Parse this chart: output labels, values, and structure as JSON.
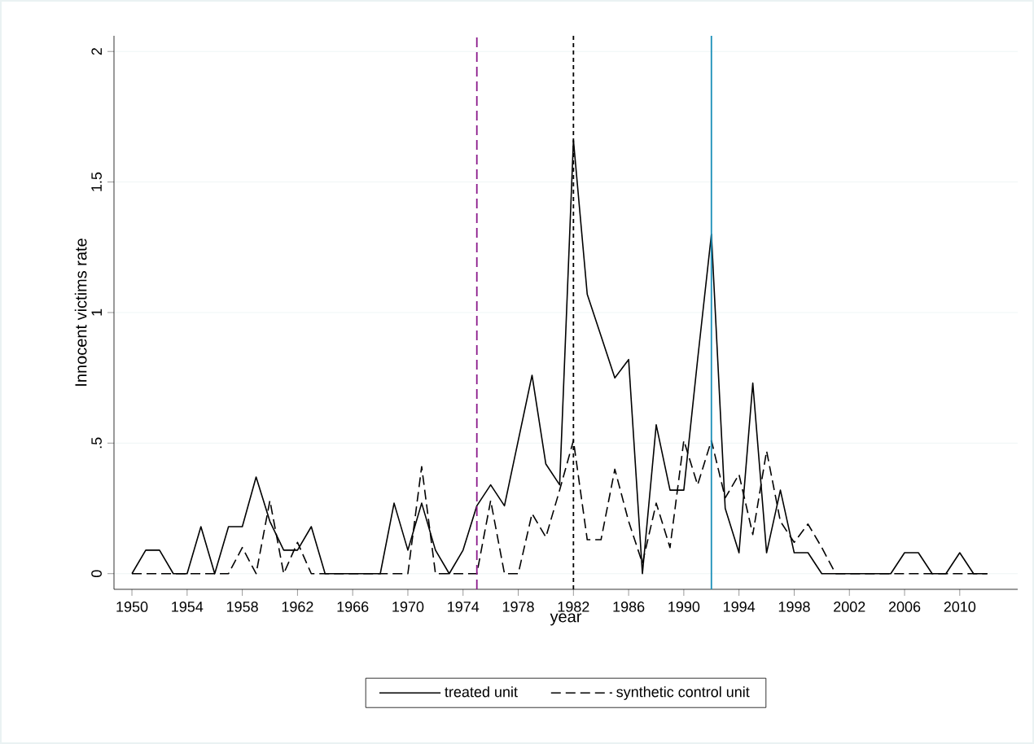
{
  "chart_data": {
    "type": "line",
    "xlabel": "year",
    "ylabel": "Innocent victims rate",
    "x": [
      1950,
      1951,
      1952,
      1953,
      1954,
      1955,
      1956,
      1957,
      1958,
      1959,
      1960,
      1961,
      1962,
      1963,
      1964,
      1965,
      1966,
      1967,
      1968,
      1969,
      1970,
      1971,
      1972,
      1973,
      1974,
      1975,
      1976,
      1977,
      1978,
      1979,
      1980,
      1981,
      1982,
      1983,
      1984,
      1985,
      1986,
      1987,
      1988,
      1989,
      1990,
      1991,
      1992,
      1993,
      1994,
      1995,
      1996,
      1997,
      1998,
      1999,
      2000,
      2001,
      2002,
      2003,
      2004,
      2005,
      2006,
      2007,
      2008,
      2009,
      2010,
      2011,
      2012
    ],
    "series": [
      {
        "name": "treated unit",
        "color": "#000000",
        "line_style": "solid",
        "values": [
          0,
          0.09,
          0.09,
          0,
          0,
          0.18,
          0,
          0.18,
          0.18,
          0.37,
          0.2,
          0.09,
          0.09,
          0.18,
          0,
          0,
          0,
          0,
          0,
          0.27,
          0.09,
          0.27,
          0.09,
          0,
          0.09,
          0.26,
          0.34,
          0.26,
          0.51,
          0.76,
          0.42,
          0.34,
          1.66,
          1.07,
          0.91,
          0.75,
          0.82,
          0,
          0.57,
          0.32,
          0.32,
          0.82,
          1.3,
          0.25,
          0.08,
          0.73,
          0.08,
          0.32,
          0.08,
          0.08,
          0,
          0,
          0,
          0,
          0,
          0,
          0.08,
          0.08,
          0,
          0,
          0.08,
          0,
          0
        ]
      },
      {
        "name": "synthetic control unit",
        "color": "#000000",
        "line_style": "dashed",
        "values": [
          0,
          0,
          0,
          0,
          0,
          0,
          0,
          0,
          0.1,
          0,
          0.28,
          0,
          0.12,
          0,
          0,
          0,
          0,
          0,
          0,
          0,
          0,
          0.41,
          0,
          0,
          0,
          0,
          0.28,
          0,
          0,
          0.23,
          0.14,
          0.32,
          0.51,
          0.13,
          0.13,
          0.4,
          0.2,
          0.04,
          0.27,
          0.1,
          0.51,
          0.34,
          0.51,
          0.29,
          0.38,
          0.15,
          0.47,
          0.2,
          0.12,
          0.19,
          0.1,
          0,
          0,
          0,
          0,
          0,
          0,
          0,
          0,
          0,
          0,
          0,
          0
        ]
      }
    ],
    "xlim": [
      1948.7,
      2014.2
    ],
    "ylim": [
      -0.06,
      2.06
    ],
    "xticks": [
      1950,
      1954,
      1958,
      1962,
      1966,
      1970,
      1974,
      1978,
      1982,
      1986,
      1990,
      1994,
      1998,
      2002,
      2006,
      2010
    ],
    "yticks": [
      0,
      {
        "value": 0.5,
        "label": ".5"
      },
      1,
      1.5,
      2
    ],
    "ref_lines": [
      {
        "axis": "x",
        "value": 1975,
        "color": "#8b1a8b",
        "line_style": "dashed"
      },
      {
        "axis": "x",
        "value": 1982,
        "color": "#000000",
        "line_style": "dotted"
      },
      {
        "axis": "x",
        "value": 1992,
        "color": "#1a8fb8",
        "line_style": "solid"
      }
    ],
    "grid": "y",
    "legend": "bottom",
    "marker": "none"
  }
}
